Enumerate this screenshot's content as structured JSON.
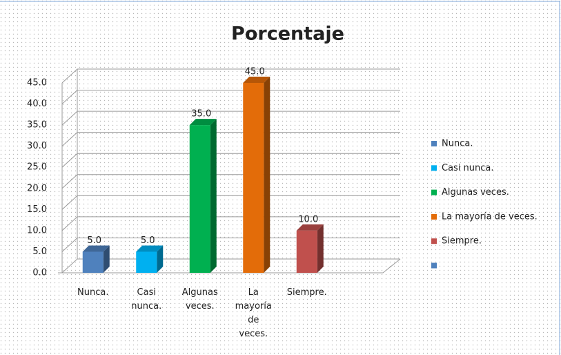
{
  "chart_data": {
    "type": "bar3d",
    "title": "Porcentaje",
    "categories": [
      "Nunca.",
      "Casi nunca.",
      "Algunas veces.",
      "La mayoría de veces.",
      "Siempre.",
      null
    ],
    "values": [
      5,
      5,
      35,
      45,
      10,
      null
    ],
    "value_labels": [
      "5.0",
      "5.0",
      "35.0",
      "45.0",
      "10.0",
      null
    ],
    "colors": [
      "#4f81bd",
      "#00b0f0",
      "#00b050",
      "#e36c09",
      "#c0504d",
      "#4f81bd"
    ],
    "ylim": [
      0,
      45
    ],
    "yticks": [
      {
        "value": 0,
        "label": "0.0"
      },
      {
        "value": 5,
        "label": "5.0"
      },
      {
        "value": 10,
        "label": "10.0"
      },
      {
        "value": 15,
        "label": "15.0"
      },
      {
        "value": 20,
        "label": "20.0"
      },
      {
        "value": 25,
        "label": "25.0"
      },
      {
        "value": 30,
        "label": "30.0"
      },
      {
        "value": 35,
        "label": "35.0"
      },
      {
        "value": 40,
        "label": "40.0"
      },
      {
        "value": 45,
        "label": "45.0"
      }
    ],
    "grid": true,
    "legend": "right"
  }
}
